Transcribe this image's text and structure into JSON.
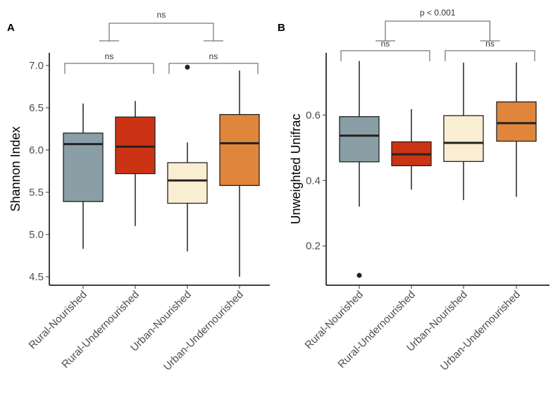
{
  "chart_data": [
    {
      "type": "box",
      "panel_label": "A",
      "ylabel": "Shannon Index",
      "xlabel": "",
      "ylim": [
        4.4,
        7.15
      ],
      "yticks": [
        4.5,
        5.0,
        5.5,
        6.0,
        6.5,
        7.0
      ],
      "ytick_labels": [
        "4.5",
        "5.0",
        "5.5",
        "6.0",
        "6.5",
        "7.0"
      ],
      "categories": [
        "Rural-Nourished",
        "Rural-Undernourished",
        "Urban-Nourished",
        "Urban-Undernourished"
      ],
      "boxes": [
        {
          "name": "Rural-Nourished",
          "color": "#8a9ea6",
          "whisker_low": 4.83,
          "q1": 5.39,
          "median": 6.07,
          "q3": 6.2,
          "whisker_high": 6.55,
          "outliers": []
        },
        {
          "name": "Rural-Undernourished",
          "color": "#cc3314",
          "whisker_low": 5.1,
          "q1": 5.72,
          "median": 6.04,
          "q3": 6.39,
          "whisker_high": 6.58,
          "outliers": []
        },
        {
          "name": "Urban-Nourished",
          "color": "#f9eed2",
          "whisker_low": 4.8,
          "q1": 5.37,
          "median": 5.64,
          "q3": 5.85,
          "whisker_high": 6.09,
          "outliers": [
            6.98
          ]
        },
        {
          "name": "Urban-Undernourished",
          "color": "#e0863c",
          "whisker_low": 4.5,
          "q1": 5.58,
          "median": 6.08,
          "q3": 6.42,
          "whisker_high": 6.94,
          "outliers": []
        }
      ],
      "annotations": [
        {
          "label": "ns",
          "type": "pair",
          "from": 0,
          "to": 1,
          "level": 1
        },
        {
          "label": "ns",
          "type": "pair",
          "from": 2,
          "to": 3,
          "level": 1
        },
        {
          "label": "ns",
          "type": "group",
          "from": [
            0,
            1
          ],
          "to": [
            2,
            3
          ],
          "level": 2
        }
      ]
    },
    {
      "type": "box",
      "panel_label": "B",
      "ylabel": "Unweighted Unifrac",
      "xlabel": "",
      "ylim": [
        0.08,
        0.79
      ],
      "yticks": [
        0.2,
        0.4,
        0.6
      ],
      "ytick_labels": [
        "0.2",
        "0.4",
        "0.6"
      ],
      "categories": [
        "Rural-Nourished",
        "Rural-Undernourished",
        "Urban-Nourished",
        "Urban-Undernourished"
      ],
      "boxes": [
        {
          "name": "Rural-Nourished",
          "color": "#8a9ea6",
          "whisker_low": 0.32,
          "q1": 0.457,
          "median": 0.537,
          "q3": 0.595,
          "whisker_high": 0.765,
          "outliers": [
            0.11
          ]
        },
        {
          "name": "Rural-Undernourished",
          "color": "#cc3314",
          "whisker_low": 0.372,
          "q1": 0.445,
          "median": 0.48,
          "q3": 0.518,
          "whisker_high": 0.618,
          "outliers": []
        },
        {
          "name": "Urban-Nourished",
          "color": "#f9eed2",
          "whisker_low": 0.34,
          "q1": 0.458,
          "median": 0.515,
          "q3": 0.598,
          "whisker_high": 0.76,
          "outliers": []
        },
        {
          "name": "Urban-Undernourished",
          "color": "#e0863c",
          "whisker_low": 0.35,
          "q1": 0.52,
          "median": 0.575,
          "q3": 0.64,
          "whisker_high": 0.76,
          "outliers": []
        }
      ],
      "annotations": [
        {
          "label": "ns",
          "type": "pair",
          "from": 0,
          "to": 1,
          "level": 1
        },
        {
          "label": "ns",
          "type": "pair",
          "from": 2,
          "to": 3,
          "level": 1
        },
        {
          "label": "p < 0.001",
          "type": "group",
          "from": [
            0,
            1
          ],
          "to": [
            2,
            3
          ],
          "level": 2
        }
      ]
    }
  ]
}
